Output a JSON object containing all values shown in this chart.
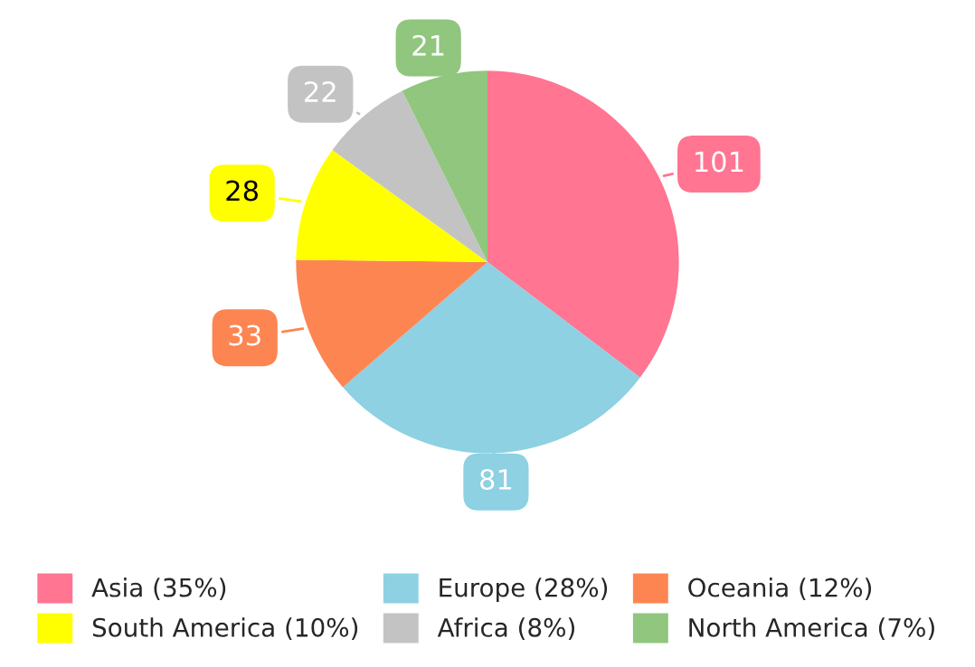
{
  "chart_data": {
    "type": "pie",
    "categories": [
      "Asia (35%)",
      "Europe (28%)",
      "Oceania (12%)",
      "South America (10%)",
      "Africa (8%)",
      "North America (7%)"
    ],
    "values": [
      101,
      81,
      33,
      28,
      22,
      21
    ],
    "colors": [
      "#ff7592",
      "#8dd1e3",
      "#fd8552",
      "#ffff00",
      "#c3c3c3",
      "#90c67d"
    ],
    "data_labels": true,
    "legend": "bottom"
  }
}
